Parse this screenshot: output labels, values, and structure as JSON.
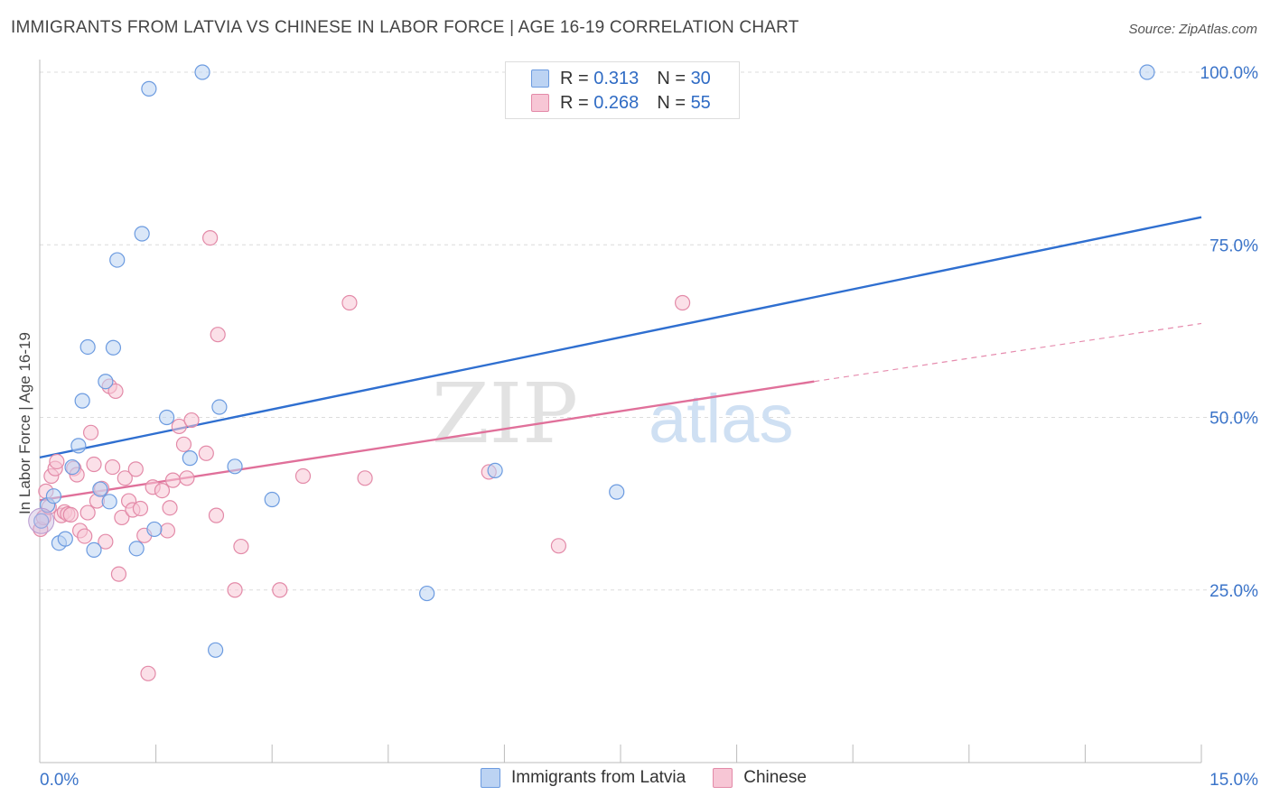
{
  "title": "IMMIGRANTS FROM LATVIA VS CHINESE IN LABOR FORCE | AGE 16-19 CORRELATION CHART",
  "source": "Source: ZipAtlas.com",
  "watermark": {
    "zip": "ZIP",
    "atlas": "atlas"
  },
  "legend": [
    {
      "r_label": "R =",
      "r_value": "0.313",
      "n_label": "N =",
      "n_value": "30"
    },
    {
      "r_label": "R =",
      "r_value": "0.268",
      "n_label": "N =",
      "n_value": "55"
    }
  ],
  "chart_data": {
    "type": "scatter",
    "xlabel": "",
    "ylabel": "In Labor Force | Age 16-19",
    "xlim": [
      0,
      15
    ],
    "ylim": [
      0,
      102
    ],
    "x_tick_labels": [
      "0.0%",
      "15.0%"
    ],
    "y_tick_labels": [
      "25.0%",
      "50.0%",
      "75.0%",
      "100.0%"
    ],
    "y_ticks": [
      25,
      50,
      75,
      100
    ],
    "grid": true,
    "legend_position": "top-center",
    "series": [
      {
        "name": "Immigrants from Latvia",
        "color": "#6c9be0",
        "fill": "#bcd3f3",
        "line_color": "#2f6fd0",
        "trend": {
          "x0": 0,
          "y0": 44.2,
          "x1": 15,
          "y1": 79.0
        },
        "points": [
          [
            0.02,
            35.0
          ],
          [
            0.1,
            37.3
          ],
          [
            0.18,
            38.6
          ],
          [
            0.25,
            31.8
          ],
          [
            0.33,
            32.4
          ],
          [
            0.42,
            42.8
          ],
          [
            0.5,
            45.9
          ],
          [
            0.55,
            52.4
          ],
          [
            0.62,
            60.2
          ],
          [
            0.7,
            30.8
          ],
          [
            0.78,
            39.6
          ],
          [
            0.85,
            55.2
          ],
          [
            0.9,
            37.8
          ],
          [
            0.95,
            60.1
          ],
          [
            1.0,
            72.8
          ],
          [
            1.25,
            31.0
          ],
          [
            1.32,
            76.6
          ],
          [
            1.41,
            97.6
          ],
          [
            1.48,
            33.8
          ],
          [
            1.64,
            50.0
          ],
          [
            1.94,
            44.1
          ],
          [
            2.1,
            100.0
          ],
          [
            2.27,
            16.3
          ],
          [
            2.32,
            51.5
          ],
          [
            2.52,
            42.9
          ],
          [
            3.0,
            38.1
          ],
          [
            5.0,
            24.5
          ],
          [
            5.88,
            42.3
          ],
          [
            7.45,
            39.2
          ],
          [
            14.3,
            100.0
          ]
        ]
      },
      {
        "name": "Chinese",
        "color": "#e38aa8",
        "fill": "#f7c6d5",
        "line_color": "#e0709a",
        "trend": {
          "x0": 0,
          "y0": 38.0,
          "x1": 10.0,
          "y1": 55.2
        },
        "trend_dashed": {
          "x0": 10.0,
          "y0": 55.2,
          "x1": 15,
          "y1": 63.6
        },
        "points": [
          [
            0.01,
            33.8
          ],
          [
            0.05,
            35.5
          ],
          [
            0.08,
            39.3
          ],
          [
            0.12,
            37.0
          ],
          [
            0.15,
            41.5
          ],
          [
            0.2,
            42.6
          ],
          [
            0.22,
            43.6
          ],
          [
            0.28,
            35.8
          ],
          [
            0.32,
            36.3
          ],
          [
            0.36,
            36.0
          ],
          [
            0.4,
            35.9
          ],
          [
            0.44,
            42.6
          ],
          [
            0.48,
            41.7
          ],
          [
            0.52,
            33.6
          ],
          [
            0.58,
            32.8
          ],
          [
            0.62,
            36.2
          ],
          [
            0.66,
            47.8
          ],
          [
            0.7,
            43.2
          ],
          [
            0.74,
            37.9
          ],
          [
            0.8,
            39.7
          ],
          [
            0.85,
            32.0
          ],
          [
            0.9,
            54.5
          ],
          [
            0.94,
            42.8
          ],
          [
            0.98,
            53.8
          ],
          [
            1.02,
            27.3
          ],
          [
            1.06,
            35.5
          ],
          [
            1.1,
            41.2
          ],
          [
            1.15,
            37.9
          ],
          [
            1.2,
            36.6
          ],
          [
            1.24,
            42.5
          ],
          [
            1.3,
            36.8
          ],
          [
            1.35,
            32.9
          ],
          [
            1.4,
            12.9
          ],
          [
            1.46,
            39.9
          ],
          [
            1.58,
            39.4
          ],
          [
            1.65,
            33.6
          ],
          [
            1.68,
            36.9
          ],
          [
            1.72,
            40.9
          ],
          [
            1.8,
            48.7
          ],
          [
            1.86,
            46.1
          ],
          [
            1.9,
            41.2
          ],
          [
            1.96,
            49.6
          ],
          [
            2.15,
            44.8
          ],
          [
            2.2,
            76.0
          ],
          [
            2.28,
            35.8
          ],
          [
            2.3,
            62.0
          ],
          [
            2.52,
            25.0
          ],
          [
            2.6,
            31.3
          ],
          [
            3.1,
            25.0
          ],
          [
            3.4,
            41.5
          ],
          [
            4.0,
            66.6
          ],
          [
            4.2,
            41.2
          ],
          [
            5.8,
            42.1
          ],
          [
            6.7,
            31.4
          ],
          [
            8.3,
            66.6
          ]
        ]
      }
    ]
  }
}
